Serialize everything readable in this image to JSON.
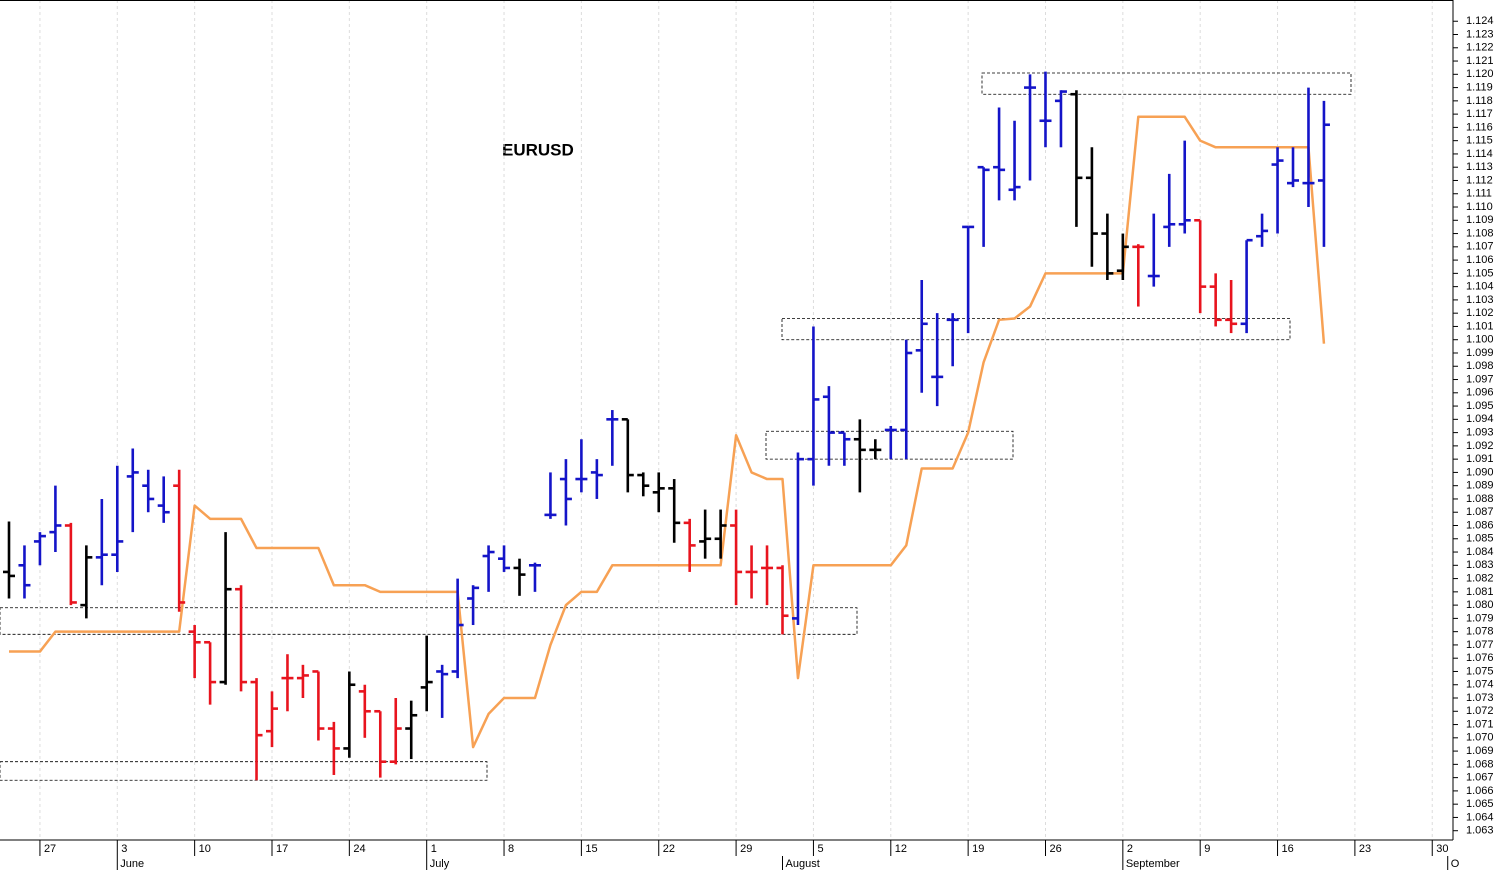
{
  "chart_data": {
    "type": "ohlc",
    "title": "EURUSD",
    "categories": [
      null,
      null,
      "27",
      null,
      null,
      null,
      null,
      "3",
      null,
      null,
      null,
      null,
      "10",
      null,
      null,
      null,
      null,
      "17",
      null,
      null,
      null,
      null,
      "24",
      null,
      null,
      null,
      null,
      "1",
      null,
      null,
      null,
      null,
      "8",
      null,
      null,
      null,
      null,
      "15",
      null,
      null,
      null,
      null,
      "22",
      null,
      null,
      null,
      null,
      "29",
      null,
      null,
      null,
      null,
      "5",
      null,
      null,
      null,
      null,
      "12",
      null,
      null,
      null,
      null,
      "19",
      null,
      null,
      null,
      null,
      "26",
      null,
      null,
      null,
      null,
      "2",
      null,
      null,
      null,
      null,
      "9",
      null,
      null,
      null,
      null,
      "16",
      null,
      null,
      null,
      null,
      "23",
      null,
      null,
      null,
      null,
      "30",
      null
    ],
    "months": [
      null,
      null,
      null,
      null,
      null,
      null,
      null,
      "June",
      null,
      null,
      null,
      null,
      null,
      null,
      null,
      null,
      null,
      null,
      null,
      null,
      null,
      null,
      null,
      null,
      null,
      null,
      null,
      "July",
      null,
      null,
      null,
      null,
      null,
      null,
      null,
      null,
      null,
      null,
      null,
      null,
      null,
      null,
      null,
      null,
      null,
      null,
      null,
      null,
      null,
      null,
      "August",
      null,
      null,
      null,
      null,
      null,
      null,
      null,
      null,
      null,
      null,
      null,
      null,
      null,
      null,
      null,
      null,
      null,
      null,
      null,
      null,
      null,
      "September",
      null,
      null,
      null,
      null,
      null,
      null,
      null,
      null,
      null,
      null,
      null,
      null,
      null,
      null,
      null,
      null,
      null,
      null,
      null,
      null,
      "O"
    ],
    "open": [
      1.0825,
      1.083,
      1.0848,
      1.0855,
      1.086,
      1.08,
      1.0836,
      1.0838,
      1.0897,
      1.089,
      1.0875,
      1.089,
      1.078,
      1.0772,
      1.0742,
      1.0812,
      1.0742,
      1.0705,
      1.0745,
      1.0745,
      1.075,
      1.0707,
      1.0692,
      1.0735,
      1.072,
      1.0682,
      1.0707,
      1.0738,
      1.075,
      1.075,
      1.0805,
      1.0837,
      1.0835,
      1.0828,
      1.083,
      1.0868,
      1.0895,
      1.0895,
      1.09,
      1.094,
      1.094,
      1.0898,
      1.0885,
      1.0888,
      1.0862,
      1.0848,
      1.085,
      1.086,
      1.0825,
      1.0828,
      1.0828,
      1.079,
      1.091,
      1.0957,
      1.093,
      1.0925,
      1.0917,
      1.0932,
      1.0932,
      1.0992,
      1.0972,
      1.1015,
      1.1085,
      1.113,
      1.113,
      1.1113,
      1.119,
      1.1165,
      1.118,
      1.1185,
      1.1122,
      1.108,
      1.1052,
      1.107,
      1.1048,
      1.1085,
      1.1087,
      1.109,
      1.104,
      1.1015,
      1.1012,
      1.1078,
      1.1132,
      1.1118,
      1.1118,
      1.112,
      null,
      null,
      null,
      null,
      null,
      null,
      null,
      null
    ],
    "high": [
      1.0863,
      1.0845,
      1.0855,
      1.089,
      1.0862,
      1.0845,
      1.088,
      1.0905,
      1.0918,
      1.0902,
      1.0897,
      1.0902,
      1.0785,
      1.0772,
      1.0855,
      1.0815,
      1.0745,
      1.0735,
      1.0763,
      1.0755,
      1.075,
      1.0712,
      1.075,
      1.074,
      1.072,
      1.073,
      1.0728,
      1.0777,
      1.0755,
      1.082,
      1.0815,
      1.0845,
      1.0845,
      1.0835,
      1.0832,
      1.09,
      1.091,
      1.0925,
      1.091,
      1.0947,
      1.094,
      1.09,
      1.09,
      1.0895,
      1.0865,
      1.0872,
      1.0872,
      1.0872,
      1.0845,
      1.0845,
      1.083,
      1.0915,
      1.101,
      1.0965,
      1.093,
      1.094,
      1.0925,
      1.0935,
      1.1,
      1.1045,
      1.102,
      1.102,
      1.1085,
      1.113,
      1.1175,
      1.1165,
      1.12,
      1.1202,
      1.1188,
      1.1188,
      1.1145,
      1.1095,
      1.108,
      1.1072,
      1.1095,
      1.1125,
      1.115,
      1.109,
      1.105,
      1.1045,
      1.1075,
      1.1095,
      1.1145,
      1.1145,
      1.119,
      1.118,
      null,
      null,
      null,
      null,
      null,
      null,
      null,
      null
    ],
    "low": [
      1.0805,
      1.0805,
      1.083,
      1.084,
      1.08,
      1.079,
      1.0815,
      1.0825,
      1.0855,
      1.087,
      1.0862,
      1.0795,
      1.0745,
      1.0725,
      1.074,
      1.0735,
      1.0668,
      1.0693,
      1.072,
      1.073,
      1.0698,
      1.0672,
      1.0685,
      1.07,
      1.067,
      1.068,
      1.0684,
      1.072,
      1.0715,
      1.0745,
      1.0785,
      1.081,
      1.0825,
      1.0807,
      1.081,
      1.0865,
      1.086,
      1.0885,
      1.088,
      1.0905,
      1.0885,
      1.0882,
      1.087,
      1.0847,
      1.0825,
      1.0835,
      1.0835,
      1.08,
      1.0805,
      1.08,
      1.0778,
      1.0785,
      1.089,
      1.0905,
      1.0905,
      1.0885,
      1.091,
      1.091,
      1.091,
      1.096,
      1.095,
      1.098,
      1.1005,
      1.107,
      1.1105,
      1.1105,
      1.112,
      1.1145,
      1.1145,
      1.1085,
      1.1055,
      1.1045,
      1.1045,
      1.1025,
      1.104,
      1.107,
      1.108,
      1.102,
      1.101,
      1.1005,
      1.1005,
      1.107,
      1.108,
      1.1115,
      1.11,
      1.107,
      null,
      null,
      null,
      null,
      null,
      null,
      null,
      null
    ],
    "close": [
      1.0822,
      1.0815,
      1.0852,
      1.086,
      1.0802,
      1.0836,
      1.0838,
      1.0848,
      1.09,
      1.088,
      1.087,
      1.0802,
      1.0772,
      1.0742,
      1.0812,
      1.0742,
      1.0702,
      1.0722,
      1.0745,
      1.0747,
      1.0707,
      1.0692,
      1.074,
      1.072,
      1.0682,
      1.0707,
      1.0717,
      1.0742,
      1.0748,
      1.0785,
      1.0813,
      1.084,
      1.0828,
      1.0823,
      1.083,
      1.0868,
      1.088,
      1.0895,
      1.0898,
      1.094,
      1.0898,
      1.089,
      1.0888,
      1.0862,
      1.0845,
      1.085,
      1.086,
      1.0825,
      1.0825,
      1.0828,
      1.0792,
      1.091,
      1.0955,
      1.093,
      1.0925,
      1.0917,
      1.0917,
      1.0932,
      1.099,
      1.1012,
      1.0972,
      1.1015,
      1.1085,
      1.1128,
      1.1128,
      1.1115,
      1.119,
      1.1165,
      1.1187,
      1.1122,
      1.108,
      1.105,
      1.107,
      1.107,
      1.1048,
      1.1087,
      1.109,
      1.104,
      1.1015,
      1.1012,
      1.1075,
      1.1082,
      1.1135,
      1.112,
      1.1118,
      1.1162,
      null,
      null,
      null,
      null,
      null,
      null,
      null,
      null
    ],
    "bar_colors": [
      "#000000",
      "#1414c8",
      "#1414c8",
      "#1414c8",
      "#e8141e",
      "#000000",
      "#1414c8",
      "#1414c8",
      "#1414c8",
      "#1414c8",
      "#1414c8",
      "#e8141e",
      "#e8141e",
      "#e8141e",
      "#000000",
      "#e8141e",
      "#e8141e",
      "#e8141e",
      "#e8141e",
      "#e8141e",
      "#e8141e",
      "#e8141e",
      "#000000",
      "#e8141e",
      "#e8141e",
      "#e8141e",
      "#000000",
      "#000000",
      "#1414c8",
      "#1414c8",
      "#1414c8",
      "#1414c8",
      "#1414c8",
      "#000000",
      "#1414c8",
      "#1414c8",
      "#1414c8",
      "#1414c8",
      "#1414c8",
      "#1414c8",
      "#000000",
      "#000000",
      "#000000",
      "#000000",
      "#e8141e",
      "#000000",
      "#000000",
      "#e8141e",
      "#e8141e",
      "#e8141e",
      "#e8141e",
      "#1414c8",
      "#1414c8",
      "#1414c8",
      "#1414c8",
      "#000000",
      "#000000",
      "#1414c8",
      "#1414c8",
      "#1414c8",
      "#1414c8",
      "#1414c8",
      "#1414c8",
      "#1414c8",
      "#1414c8",
      "#1414c8",
      "#1414c8",
      "#1414c8",
      "#1414c8",
      "#000000",
      "#000000",
      "#000000",
      "#000000",
      "#e8141e",
      "#1414c8",
      "#1414c8",
      "#1414c8",
      "#e8141e",
      "#e8141e",
      "#e8141e",
      "#1414c8",
      "#1414c8",
      "#1414c8",
      "#1414c8",
      "#1414c8",
      "#1414c8",
      null,
      null,
      null,
      null,
      null,
      null,
      null,
      null
    ],
    "line": {
      "color": "#f7a154",
      "values": [
        1.0765,
        1.0765,
        1.0765,
        1.078,
        1.078,
        1.078,
        1.078,
        1.078,
        1.078,
        1.078,
        1.078,
        1.078,
        1.0875,
        1.0865,
        1.0865,
        1.0865,
        1.0843,
        1.0843,
        1.0843,
        1.0843,
        1.0843,
        1.0815,
        1.0815,
        1.0815,
        1.081,
        1.081,
        1.081,
        1.081,
        1.081,
        1.081,
        1.0693,
        1.0718,
        1.073,
        1.073,
        1.073,
        1.077,
        1.08,
        1.081,
        1.081,
        1.083,
        1.083,
        1.083,
        1.083,
        1.083,
        1.083,
        1.083,
        1.083,
        1.0928,
        1.09,
        1.0895,
        1.0895,
        1.0745,
        1.083,
        1.083,
        1.083,
        1.083,
        1.083,
        1.083,
        1.0845,
        1.0903,
        1.0903,
        1.0903,
        1.093,
        1.0983,
        1.1015,
        1.1016,
        1.1025,
        1.105,
        1.105,
        1.105,
        1.105,
        1.105,
        1.105,
        1.1168,
        1.1168,
        1.1168,
        1.1168,
        1.115,
        1.1145,
        1.1145,
        1.1145,
        1.1145,
        1.1145,
        1.1145,
        1.1145,
        1.0997,
        null,
        null,
        null,
        null,
        null,
        null,
        null,
        null
      ]
    },
    "zones": [
      {
        "low": 1.0668,
        "high": 1.0682
      },
      {
        "low": 1.0778,
        "high": 1.0798
      },
      {
        "low": 1.091,
        "high": 1.0931
      },
      {
        "low": 1.1,
        "high": 1.1016
      },
      {
        "low": 1.1185,
        "high": 1.1201
      }
    ],
    "ylim": [
      1.0623,
      1.1256
    ],
    "yticks": [
      1.063,
      1.064,
      1.065,
      1.066,
      1.067,
      1.068,
      1.069,
      {
        "value": 1.07,
        "label": "1.070"
      },
      1.071,
      1.072,
      1.073,
      1.074,
      1.075,
      1.076,
      1.077,
      1.078,
      1.079,
      {
        "value": 1.08,
        "label": "1.080"
      },
      1.081,
      1.082,
      1.083,
      1.084,
      1.085,
      1.086,
      1.087,
      1.088,
      1.089,
      {
        "value": 1.09,
        "label": "1.090"
      },
      1.091,
      1.092,
      1.093,
      1.094,
      1.095,
      1.096,
      1.097,
      1.098,
      1.099,
      {
        "value": 1.1,
        "label": "1.100"
      },
      1.101,
      1.102,
      1.103,
      1.104,
      1.105,
      1.106,
      1.107,
      1.108,
      1.109,
      {
        "value": 1.11,
        "label": "1.110"
      },
      1.111,
      1.112,
      1.113,
      1.114,
      1.115,
      1.116,
      1.117,
      1.118,
      1.119,
      {
        "value": 1.12,
        "label": "1.120"
      },
      1.121,
      1.122,
      1.123,
      1.124
    ],
    "grid": true
  }
}
